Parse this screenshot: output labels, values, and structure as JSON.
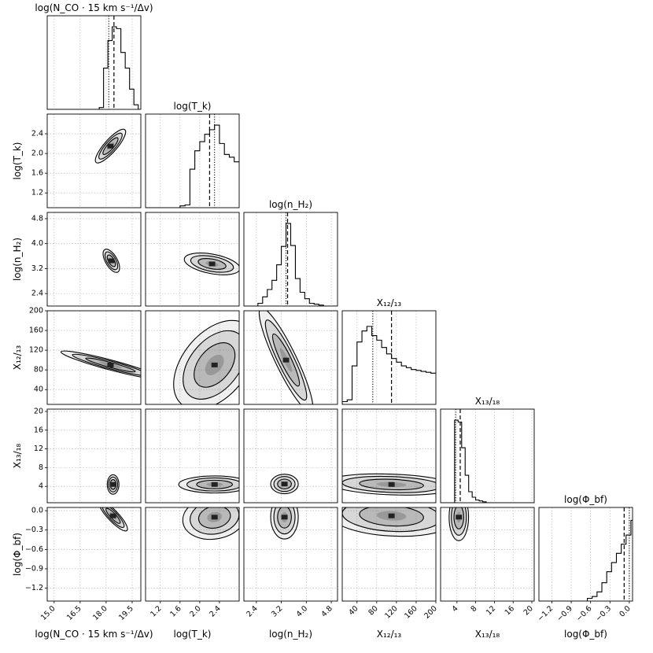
{
  "chart_data": {
    "type": "corner",
    "parameters": [
      {
        "key": "nco",
        "label": "log(N_CO · 15 km s⁻¹/Δv)",
        "range": [
          14.6,
          20.0
        ],
        "ticks": [
          15.0,
          16.5,
          18.0,
          19.5
        ],
        "tick_labels": [
          "15.0",
          "16.5",
          "18.0",
          "19.5"
        ],
        "histogram": {
          "edges_start": 14.6,
          "bin_width": 0.25,
          "counts": [
            0,
            0,
            0,
            0,
            0,
            0,
            0,
            0,
            0,
            0,
            0,
            0,
            0.02,
            0.45,
            0.75,
            0.9,
            0.88,
            0.62,
            0.45,
            0.22,
            0.05,
            0,
            0,
            0,
            0,
            0,
            0
          ]
        },
        "median": 18.45,
        "best_fit": 18.15
      },
      {
        "key": "tk",
        "label": "log(T_k)",
        "range": [
          0.9,
          2.8
        ],
        "ticks": [
          1.2,
          1.6,
          2.0,
          2.4
        ],
        "tick_labels": [
          "1.2",
          "1.6",
          "2.0",
          "2.4"
        ],
        "histogram": {
          "edges_start": 0.9,
          "bin_width": 0.1,
          "counts": [
            0,
            0,
            0,
            0,
            0,
            0,
            0,
            0.02,
            0.03,
            0.42,
            0.62,
            0.72,
            0.8,
            0.85,
            0.9,
            0.7,
            0.58,
            0.55,
            0.5
          ]
        },
        "median": 2.2,
        "best_fit": 2.3
      },
      {
        "key": "nh2",
        "label": "log(n_H₂)",
        "range": [
          2.0,
          5.0
        ],
        "ticks": [
          2.4,
          3.2,
          4.0,
          4.8
        ],
        "tick_labels": [
          "2.4",
          "3.2",
          "4.0",
          "4.8"
        ],
        "histogram": {
          "edges_start": 2.0,
          "bin_width": 0.15,
          "counts": [
            0,
            0,
            0,
            0.03,
            0.1,
            0.18,
            0.28,
            0.45,
            0.65,
            0.9,
            0.66,
            0.3,
            0.15,
            0.08,
            0.03,
            0.02,
            0.01,
            0,
            0,
            0
          ]
        },
        "median": 3.4,
        "best_fit": 3.35
      },
      {
        "key": "x1213",
        "label": "X₁₂/₁₃",
        "range": [
          10,
          200
        ],
        "ticks": [
          40,
          80,
          120,
          160,
          200
        ],
        "tick_labels": [
          "40",
          "80",
          "120",
          "160",
          "200"
        ],
        "histogram": {
          "edges_start": 10,
          "bin_width": 10,
          "counts": [
            0.03,
            0.05,
            0.42,
            0.68,
            0.8,
            0.85,
            0.75,
            0.7,
            0.62,
            0.55,
            0.5,
            0.46,
            0.42,
            0.4,
            0.38,
            0.37,
            0.36,
            0.35,
            0.34
          ]
        },
        "median": 110,
        "best_fit": 72
      },
      {
        "key": "x1318",
        "label": "X₁₃/₁₈",
        "range": [
          0.5,
          20.5
        ],
        "ticks": [
          4,
          8,
          12,
          16,
          20
        ],
        "tick_labels": [
          "4",
          "8",
          "12",
          "16",
          "20"
        ],
        "histogram": {
          "edges_start": 0.5,
          "bin_width": 0.75,
          "counts": [
            0,
            0,
            0,
            0,
            0.9,
            0.88,
            0.6,
            0.3,
            0.12,
            0.06,
            0.03,
            0.02,
            0.01,
            0,
            0,
            0,
            0,
            0,
            0,
            0,
            0,
            0,
            0,
            0,
            0,
            0,
            0
          ]
        },
        "median": 4.7,
        "best_fit": 3.7
      },
      {
        "key": "phibf",
        "label": "log(Φ_bf)",
        "range": [
          -1.4,
          0.05
        ],
        "ticks": [
          -1.2,
          -0.9,
          -0.6,
          -0.3,
          0.0
        ],
        "tick_labels": [
          "−1.2",
          "−0.9",
          "−0.6",
          "−0.3",
          "0.0"
        ],
        "histogram": {
          "edges_start": -1.4,
          "bin_width": 0.075,
          "counts": [
            0,
            0,
            0,
            0,
            0,
            0,
            0,
            0,
            0,
            0,
            0.03,
            0.05,
            0.1,
            0.2,
            0.32,
            0.42,
            0.52,
            0.62,
            0.72,
            0.88
          ]
        },
        "median": -0.08,
        "best_fit": 0.0
      }
    ],
    "contours_2d": [
      {
        "x": "nco",
        "y": "tk",
        "mean": [
          18.25,
          2.15
        ],
        "sd": [
          0.14,
          0.17
        ],
        "rho": -0.3
      },
      {
        "x": "nco",
        "y": "nh2",
        "mean": [
          18.3,
          3.45
        ],
        "sd": [
          0.13,
          0.16
        ],
        "rho": 0.3
      },
      {
        "x": "tk",
        "y": "nh2",
        "mean": [
          2.25,
          3.35
        ],
        "sd": [
          0.22,
          0.12
        ],
        "rho": -0.6
      },
      {
        "x": "nco",
        "y": "x1213",
        "mean": [
          18.25,
          90
        ],
        "sd": [
          0.11,
          40
        ],
        "rho": 0.85
      },
      {
        "x": "tk",
        "y": "x1213",
        "mean": [
          2.3,
          90
        ],
        "sd": [
          0.25,
          40
        ],
        "rho": -0.6
      },
      {
        "x": "nh2",
        "y": "x1213",
        "mean": [
          3.35,
          100
        ],
        "sd": [
          0.13,
          45
        ],
        "rho": 0.1
      },
      {
        "x": "nco",
        "y": "x1318",
        "mean": [
          18.4,
          4.4
        ],
        "sd": [
          0.13,
          0.8
        ],
        "rho": 0.0
      },
      {
        "x": "tk",
        "y": "x1318",
        "mean": [
          2.3,
          4.4
        ],
        "sd": [
          0.28,
          0.7
        ],
        "rho": 0.0
      },
      {
        "x": "nh2",
        "y": "x1318",
        "mean": [
          3.3,
          4.5
        ],
        "sd": [
          0.17,
          0.8
        ],
        "rho": 0.0
      },
      {
        "x": "x1213",
        "y": "x1318",
        "mean": [
          110,
          4.4
        ],
        "sd": [
          50,
          0.85
        ],
        "rho": -0.25
      },
      {
        "x": "x1318",
        "y": "x1213",
        "mean": [
          0,
          0
        ],
        "sd": [
          1,
          1
        ],
        "rho": 0,
        "skip": true
      },
      {
        "x": "nco",
        "y": "phibf",
        "mean": [
          18.4,
          -0.08
        ],
        "sd": [
          0.12,
          0.12
        ],
        "rho": 0.3
      },
      {
        "x": "tk",
        "y": "phibf",
        "mean": [
          2.3,
          -0.1
        ],
        "sd": [
          0.25,
          0.13
        ],
        "rho": 0.3
      },
      {
        "x": "nh2",
        "y": "phibf",
        "mean": [
          3.3,
          -0.1
        ],
        "sd": [
          0.17,
          0.13
        ],
        "rho": 0.0
      },
      {
        "x": "x1213",
        "y": "phibf",
        "mean": [
          110,
          -0.08
        ],
        "sd": [
          50,
          0.12
        ],
        "rho": -0.2
      },
      {
        "x": "x1318",
        "y": "phibf",
        "mean": [
          4.4,
          -0.1
        ],
        "sd": [
          0.8,
          0.14
        ],
        "rho": 0.0
      }
    ],
    "grid": true,
    "colors": {
      "line": "#000000",
      "fill": "#808080",
      "grid": "#b0b0b0"
    }
  }
}
